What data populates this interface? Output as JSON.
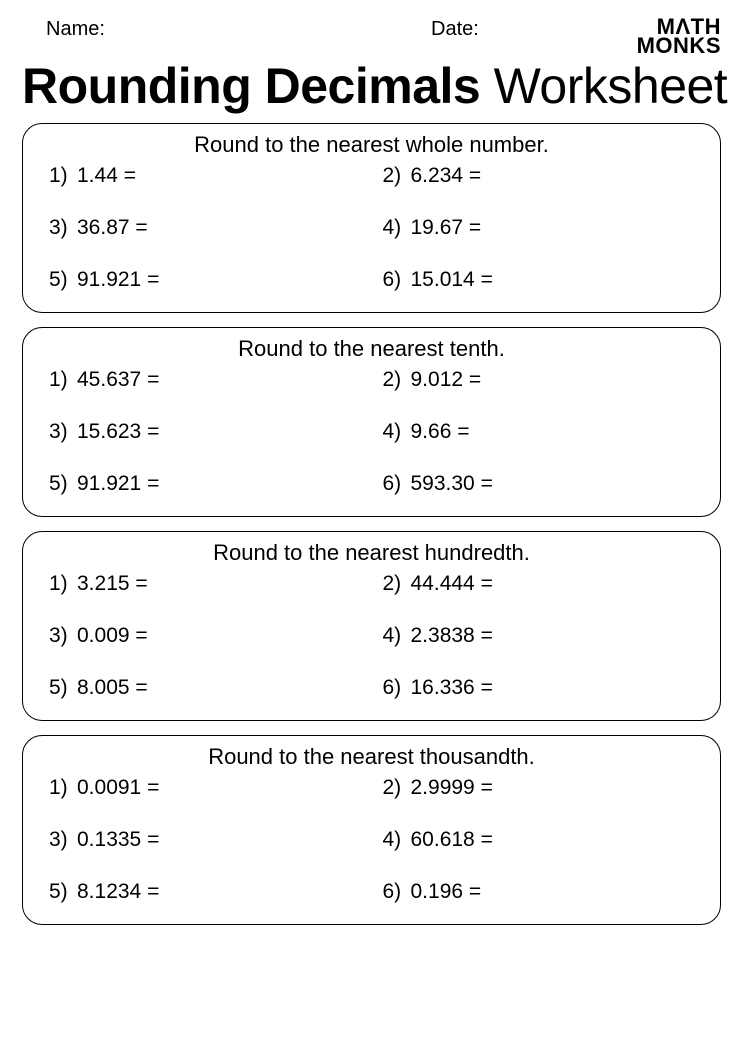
{
  "header": {
    "name_label": "Name:",
    "date_label": "Date:",
    "logo_line1": "MΛTH",
    "logo_line2": "MONKS"
  },
  "title": {
    "part1": "Rounding Decimals",
    "part2": "Worksheet"
  },
  "sections": [
    {
      "heading": "Round to the nearest whole number.",
      "items": [
        {
          "n": "1)",
          "v": "1.44 ="
        },
        {
          "n": "2)",
          "v": "6.234 ="
        },
        {
          "n": "3)",
          "v": "36.87 ="
        },
        {
          "n": "4)",
          "v": "19.67 ="
        },
        {
          "n": "5)",
          "v": "91.921 ="
        },
        {
          "n": "6)",
          "v": "15.014 ="
        }
      ]
    },
    {
      "heading": "Round to the nearest tenth.",
      "items": [
        {
          "n": "1)",
          "v": "45.637 ="
        },
        {
          "n": "2)",
          "v": "9.012 ="
        },
        {
          "n": "3)",
          "v": "15.623 ="
        },
        {
          "n": "4)",
          "v": "9.66 ="
        },
        {
          "n": "5)",
          "v": "91.921 ="
        },
        {
          "n": "6)",
          "v": "593.30 ="
        }
      ]
    },
    {
      "heading": "Round to the nearest hundredth.",
      "items": [
        {
          "n": "1)",
          "v": "3.215 ="
        },
        {
          "n": "2)",
          "v": "44.444 ="
        },
        {
          "n": "3)",
          "v": "0.009 ="
        },
        {
          "n": "4)",
          "v": "2.3838 ="
        },
        {
          "n": "5)",
          "v": "8.005 ="
        },
        {
          "n": "6)",
          "v": "16.336 ="
        }
      ]
    },
    {
      "heading": "Round to the nearest thousandth.",
      "items": [
        {
          "n": "1)",
          "v": "0.0091 ="
        },
        {
          "n": "2)",
          "v": "2.9999 ="
        },
        {
          "n": "3)",
          "v": "0.1335 ="
        },
        {
          "n": "4)",
          "v": "60.618 ="
        },
        {
          "n": "5)",
          "v": "8.1234 ="
        },
        {
          "n": "6)",
          "v": "0.196 ="
        }
      ]
    }
  ]
}
